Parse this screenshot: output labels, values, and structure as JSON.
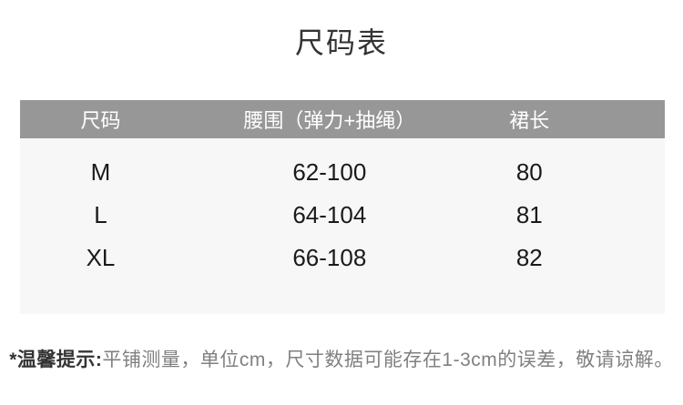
{
  "title": "尺码表",
  "colors": {
    "header_background": "#979797",
    "header_text": "#ffffff",
    "body_background": "#f7f7f7",
    "body_text": "#1a1a1a",
    "note_text": "#808080",
    "note_prefix_text": "#333333",
    "page_background": "#ffffff"
  },
  "table": {
    "columns": [
      "尺码",
      "腰围（弹力+抽绳）",
      "裙长"
    ],
    "rows": [
      {
        "size": "M",
        "waist": "62-100",
        "length": "80"
      },
      {
        "size": "L",
        "waist": "64-104",
        "length": "81"
      },
      {
        "size": "XL",
        "waist": "66-108",
        "length": "82"
      }
    ]
  },
  "footnote": {
    "prefix": "*温馨提示:",
    "text": "平铺测量，单位cm，尺寸数据可能存在1-3cm的误差，敬请谅解。"
  },
  "chart_data": {
    "type": "table",
    "title": "尺码表",
    "columns": [
      "尺码",
      "腰围（弹力+抽绳）",
      "裙长"
    ],
    "rows": [
      [
        "M",
        "62-100",
        "80"
      ],
      [
        "L",
        "64-104",
        "81"
      ],
      [
        "XL",
        "66-108",
        "82"
      ]
    ],
    "note": "*温馨提示:平铺测量，单位cm，尺寸数据可能存在1-3cm的误差，敬请谅解。"
  }
}
